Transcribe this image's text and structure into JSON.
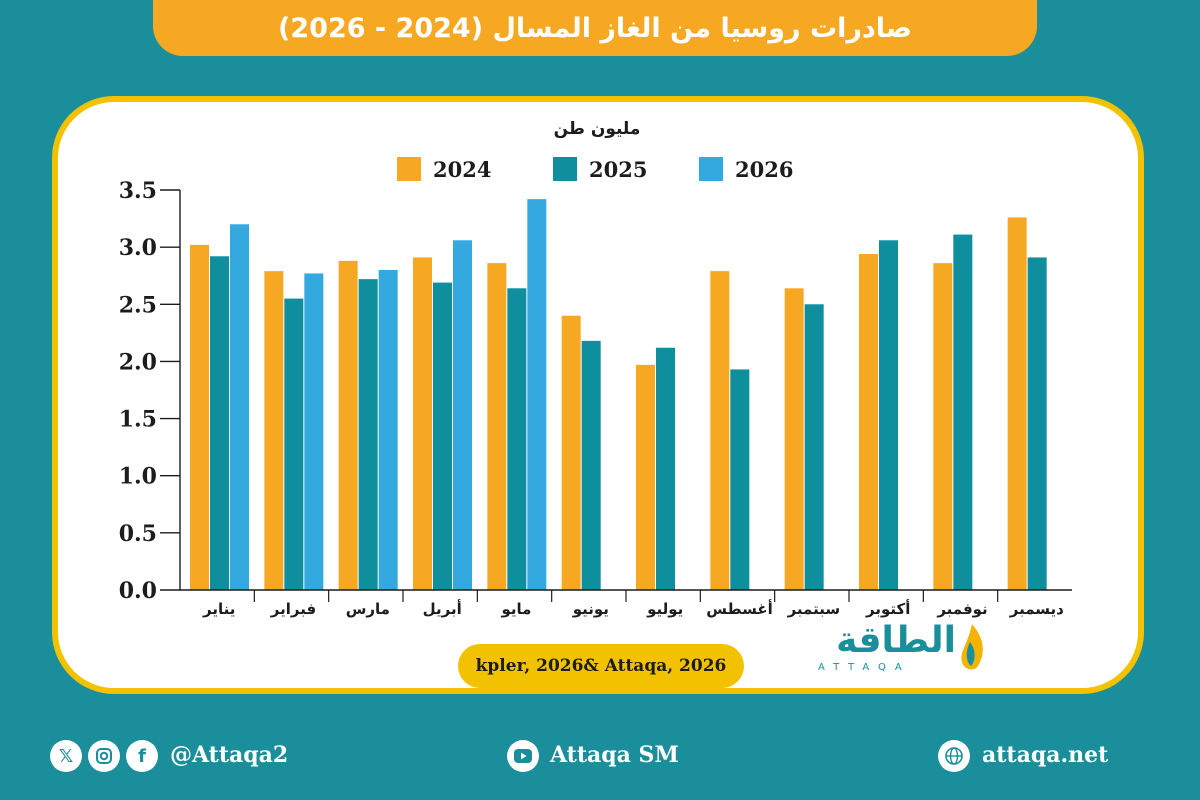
{
  "title": "صادرات روسيا من الغاز المسال (2024 - 2026)",
  "colors": {
    "c2024": "#f7a823",
    "c2025": "#0f8e9e",
    "c2026": "#33a9e0"
  },
  "chart_data": {
    "type": "bar",
    "unit_label": "مليون طن",
    "categories": [
      "يناير",
      "فبراير",
      "مارس",
      "أبريل",
      "مايو",
      "يونيو",
      "يوليو",
      "أغسطس",
      "سبتمبر",
      "أكتوبر",
      "نوفمبر",
      "ديسمبر"
    ],
    "series": [
      {
        "name": "2024",
        "values": [
          3.02,
          2.79,
          2.88,
          2.91,
          2.86,
          2.4,
          1.97,
          2.79,
          2.64,
          2.94,
          2.86,
          3.26
        ]
      },
      {
        "name": "2025",
        "values": [
          2.92,
          2.55,
          2.72,
          2.69,
          2.64,
          2.18,
          2.12,
          1.93,
          2.5,
          3.06,
          3.11,
          2.91
        ]
      },
      {
        "name": "2026",
        "values": [
          3.2,
          2.77,
          2.8,
          3.06,
          3.42,
          null,
          null,
          null,
          null,
          null,
          null,
          null
        ]
      }
    ],
    "yticks": [
      "0.0",
      "0.5",
      "1.0",
      "1.5",
      "2.0",
      "2.5",
      "3.0",
      "3.5"
    ],
    "ylim": [
      0,
      3.5
    ],
    "legend_position": "top"
  },
  "source": "kpler, 2026& Attaqa, 2026",
  "logo": {
    "text": "الطاقة",
    "sub": "ATTAQA"
  },
  "footer": {
    "social_handle": "@Attaqa2",
    "youtube": "Attaqa SM",
    "website": "attaqa.net",
    "icons": [
      "x-icon",
      "instagram-icon",
      "facebook-icon",
      "youtube-icon",
      "globe-icon"
    ]
  }
}
